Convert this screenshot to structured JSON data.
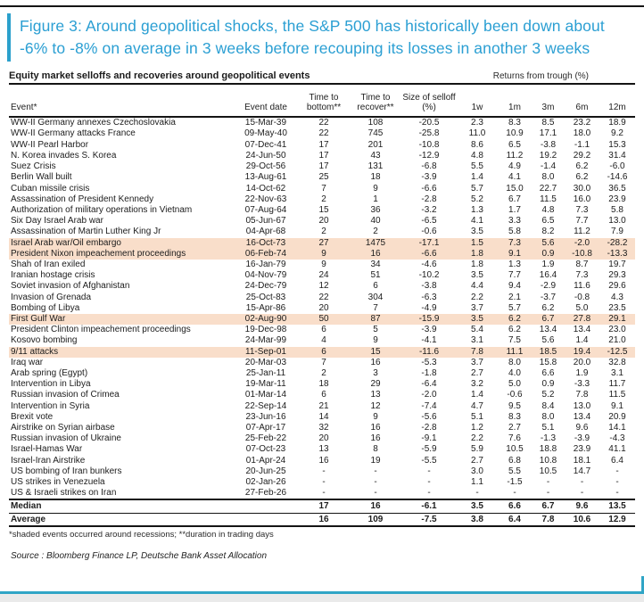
{
  "figure": {
    "title": "Figure 3: Around geopolitical shocks, the S&P 500 has historically been down about -6% to -8% on average in 3 weeks before recouping its losses in another 3 weeks"
  },
  "table": {
    "heading": "Equity market selloffs and recoveries around geopolitical events",
    "returns_label": "Returns from trough (%)",
    "columns": [
      "Event*",
      "Event date",
      "Time to bottom**",
      "Time to recover**",
      "Size of selloff (%)",
      "1w",
      "1m",
      "3m",
      "6m",
      "12m"
    ],
    "rows": [
      {
        "cells": [
          "WW-II Germany annexes Czechoslovakia",
          "15-Mar-39",
          "22",
          "108",
          "-20.5",
          "2.3",
          "8.3",
          "8.5",
          "23.2",
          "18.9"
        ],
        "shaded": false
      },
      {
        "cells": [
          "WW-II Germany attacks France",
          "09-May-40",
          "22",
          "745",
          "-25.8",
          "11.0",
          "10.9",
          "17.1",
          "18.0",
          "9.2"
        ],
        "shaded": false
      },
      {
        "cells": [
          "WW-II Pearl Harbor",
          "07-Dec-41",
          "17",
          "201",
          "-10.8",
          "8.6",
          "6.5",
          "-3.8",
          "-1.1",
          "15.3"
        ],
        "shaded": false
      },
      {
        "cells": [
          "N. Korea invades S. Korea",
          "24-Jun-50",
          "17",
          "43",
          "-12.9",
          "4.8",
          "11.2",
          "19.2",
          "29.2",
          "31.4"
        ],
        "shaded": false
      },
      {
        "cells": [
          "Suez Crisis",
          "29-Oct-56",
          "17",
          "131",
          "-6.8",
          "5.5",
          "4.9",
          "-1.4",
          "6.2",
          "-6.0"
        ],
        "shaded": false
      },
      {
        "cells": [
          "Berlin Wall built",
          "13-Aug-61",
          "25",
          "18",
          "-3.9",
          "1.4",
          "4.1",
          "8.0",
          "6.2",
          "-14.6"
        ],
        "shaded": false
      },
      {
        "cells": [
          "Cuban missile crisis",
          "14-Oct-62",
          "7",
          "9",
          "-6.6",
          "5.7",
          "15.0",
          "22.7",
          "30.0",
          "36.5"
        ],
        "shaded": false
      },
      {
        "cells": [
          "Assassination of President Kennedy",
          "22-Nov-63",
          "2",
          "1",
          "-2.8",
          "5.2",
          "6.7",
          "11.5",
          "16.0",
          "23.9"
        ],
        "shaded": false
      },
      {
        "cells": [
          "Authorization of military operations in Vietnam",
          "07-Aug-64",
          "15",
          "36",
          "-3.2",
          "1.3",
          "1.7",
          "4.8",
          "7.3",
          "5.8"
        ],
        "shaded": false
      },
      {
        "cells": [
          "Six Day Israel Arab war",
          "05-Jun-67",
          "20",
          "40",
          "-6.5",
          "4.1",
          "3.3",
          "6.5",
          "7.7",
          "13.0"
        ],
        "shaded": false
      },
      {
        "cells": [
          "Assassination of Martin Luther King Jr",
          "04-Apr-68",
          "2",
          "2",
          "-0.6",
          "3.5",
          "5.8",
          "8.2",
          "11.2",
          "7.9"
        ],
        "shaded": false
      },
      {
        "cells": [
          "Israel Arab war/Oil embargo",
          "16-Oct-73",
          "27",
          "1475",
          "-17.1",
          "1.5",
          "7.3",
          "5.6",
          "-2.0",
          "-28.2"
        ],
        "shaded": true
      },
      {
        "cells": [
          "President Nixon impeachement proceedings",
          "06-Feb-74",
          "9",
          "16",
          "-6.6",
          "1.8",
          "9.1",
          "0.9",
          "-10.8",
          "-13.3"
        ],
        "shaded": true
      },
      {
        "cells": [
          "Shah of Iran exiled",
          "16-Jan-79",
          "9",
          "34",
          "-4.6",
          "1.8",
          "1.3",
          "1.9",
          "8.7",
          "19.7"
        ],
        "shaded": false
      },
      {
        "cells": [
          "Iranian hostage crisis",
          "04-Nov-79",
          "24",
          "51",
          "-10.2",
          "3.5",
          "7.7",
          "16.4",
          "7.3",
          "29.3"
        ],
        "shaded": false
      },
      {
        "cells": [
          "Soviet invasion of Afghanistan",
          "24-Dec-79",
          "12",
          "6",
          "-3.8",
          "4.4",
          "9.4",
          "-2.9",
          "11.6",
          "29.6"
        ],
        "shaded": false
      },
      {
        "cells": [
          "Invasion of Grenada",
          "25-Oct-83",
          "22",
          "304",
          "-6.3",
          "2.2",
          "2.1",
          "-3.7",
          "-0.8",
          "4.3"
        ],
        "shaded": false
      },
      {
        "cells": [
          "Bombing of Libya",
          "15-Apr-86",
          "20",
          "7",
          "-4.9",
          "3.7",
          "5.7",
          "6.2",
          "5.0",
          "23.5"
        ],
        "shaded": false
      },
      {
        "cells": [
          "First Gulf War",
          "02-Aug-90",
          "50",
          "87",
          "-15.9",
          "3.5",
          "6.2",
          "6.7",
          "27.8",
          "29.1"
        ],
        "shaded": true
      },
      {
        "cells": [
          "President Clinton impeachement proceedings",
          "19-Dec-98",
          "6",
          "5",
          "-3.9",
          "5.4",
          "6.2",
          "13.4",
          "13.4",
          "23.0"
        ],
        "shaded": false
      },
      {
        "cells": [
          "Kosovo bombing",
          "24-Mar-99",
          "4",
          "9",
          "-4.1",
          "3.1",
          "7.5",
          "5.6",
          "1.4",
          "21.0"
        ],
        "shaded": false
      },
      {
        "cells": [
          "9/11 attacks",
          "11-Sep-01",
          "6",
          "15",
          "-11.6",
          "7.8",
          "11.1",
          "18.5",
          "19.4",
          "-12.5"
        ],
        "shaded": true
      },
      {
        "cells": [
          "Iraq war",
          "20-Mar-03",
          "7",
          "16",
          "-5.3",
          "3.7",
          "8.0",
          "15.8",
          "20.0",
          "32.8"
        ],
        "shaded": false
      },
      {
        "cells": [
          "Arab spring (Egypt)",
          "25-Jan-11",
          "2",
          "3",
          "-1.8",
          "2.7",
          "4.0",
          "6.6",
          "1.9",
          "3.1"
        ],
        "shaded": false
      },
      {
        "cells": [
          "Intervention in Libya",
          "19-Mar-11",
          "18",
          "29",
          "-6.4",
          "3.2",
          "5.0",
          "0.9",
          "-3.3",
          "11.7"
        ],
        "shaded": false
      },
      {
        "cells": [
          "Russian invasion of Crimea",
          "01-Mar-14",
          "6",
          "13",
          "-2.0",
          "1.4",
          "-0.6",
          "5.2",
          "7.8",
          "11.5"
        ],
        "shaded": false
      },
      {
        "cells": [
          "Intervention in Syria",
          "22-Sep-14",
          "21",
          "12",
          "-7.4",
          "4.7",
          "9.5",
          "8.4",
          "13.0",
          "9.1"
        ],
        "shaded": false
      },
      {
        "cells": [
          "Brexit vote",
          "23-Jun-16",
          "14",
          "9",
          "-5.6",
          "5.1",
          "8.3",
          "8.0",
          "13.4",
          "20.9"
        ],
        "shaded": false
      },
      {
        "cells": [
          "Airstrike on Syrian airbase",
          "07-Apr-17",
          "32",
          "16",
          "-2.8",
          "1.2",
          "2.7",
          "5.1",
          "9.6",
          "14.1"
        ],
        "shaded": false
      },
      {
        "cells": [
          "Russian invasion of Ukraine",
          "25-Feb-22",
          "20",
          "16",
          "-9.1",
          "2.2",
          "7.6",
          "-1.3",
          "-3.9",
          "-4.3"
        ],
        "shaded": false
      },
      {
        "cells": [
          "Israel-Hamas War",
          "07-Oct-23",
          "13",
          "8",
          "-5.9",
          "5.9",
          "10.5",
          "18.8",
          "23.9",
          "41.1"
        ],
        "shaded": false
      },
      {
        "cells": [
          "Israel-Iran Airstrike",
          "01-Apr-24",
          "16",
          "19",
          "-5.5",
          "2.7",
          "6.8",
          "10.8",
          "18.1",
          "6.4"
        ],
        "shaded": false
      },
      {
        "cells": [
          "US bombing of Iran bunkers",
          "20-Jun-25",
          "-",
          "-",
          "-",
          "3.0",
          "5.5",
          "10.5",
          "14.7",
          "-"
        ],
        "shaded": false
      },
      {
        "cells": [
          "US strikes in Venezuela",
          "02-Jan-26",
          "-",
          "-",
          "-",
          "1.1",
          "-1.5",
          "-",
          "-",
          "-"
        ],
        "shaded": false
      },
      {
        "cells": [
          "US & Israeli strikes on Iran",
          "27-Feb-26",
          "-",
          "-",
          "-",
          "-",
          "-",
          "-",
          "-",
          "-"
        ],
        "shaded": false
      }
    ],
    "summary": [
      {
        "cells": [
          "Median",
          "",
          "17",
          "16",
          "-6.1",
          "3.5",
          "6.6",
          "6.7",
          "9.6",
          "13.5"
        ]
      },
      {
        "cells": [
          "Average",
          "",
          "16",
          "109",
          "-7.5",
          "3.8",
          "6.4",
          "7.8",
          "10.6",
          "12.9"
        ]
      }
    ],
    "footnote": "*shaded events occurred around recessions; **duration in trading days",
    "source": "Source : Bloomberg Finance LP, Deutsche Bank Asset Allocation"
  },
  "colors": {
    "accent_blue": "#2BA0CC",
    "shaded_row": "#F9DECA",
    "rule_black": "#141414"
  }
}
